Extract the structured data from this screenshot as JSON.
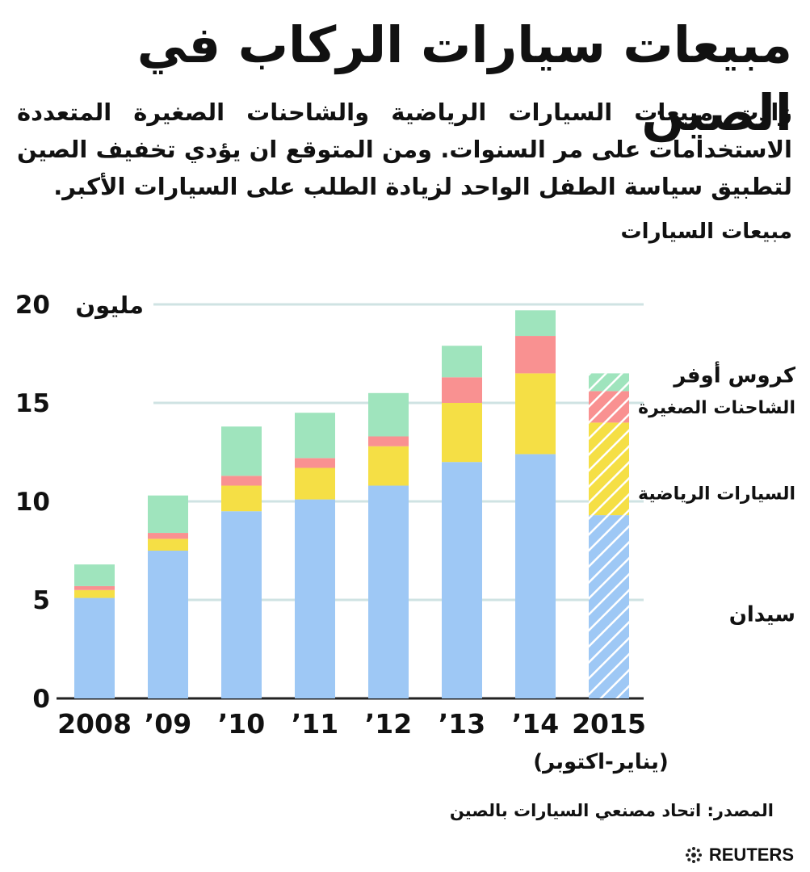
{
  "header": {
    "title": "مبيعات سيارات الركاب في الصين",
    "subtitle": "زادت مبيعات السيارات الرياضية والشاحنات الصغيرة المتعددة الاستخدامات على مر السنوات. ومن المتوقع ان يؤدي تخفيف الصين لتطبيق سياسة الطفل الواحد لزيادة الطلب على السيارات الأكبر.",
    "unit_heading": "مبيعات السيارات"
  },
  "footer": {
    "source": "المصدر: اتحاد مصنعي السيارات بالصين",
    "brand": "REUTERS",
    "brand_icon": "reuters-logo-icon"
  },
  "chart_data": {
    "type": "bar",
    "stacked": true,
    "categories": [
      "2008",
      "’09",
      "’10",
      "’11",
      "’12",
      "’13",
      "’14",
      "2015"
    ],
    "category_sublabels": [
      "",
      "",
      "",
      "",
      "",
      "",
      "",
      "(يناير-اكتوبر)"
    ],
    "ylim": [
      0,
      20
    ],
    "yticks": [
      0,
      5,
      10,
      15,
      20
    ],
    "y_unit_label": "مليون",
    "grid": true,
    "legend_position": "right",
    "projected_category_index": 7,
    "series": [
      {
        "name": "سيدان",
        "color": "#9ec8f5",
        "values": [
          5.1,
          7.5,
          9.5,
          10.1,
          10.8,
          12.0,
          12.4,
          9.3
        ]
      },
      {
        "name": "السيارات الرياضية",
        "color": "#f5df45",
        "values": [
          0.4,
          0.6,
          1.3,
          1.6,
          2.0,
          3.0,
          4.1,
          4.7
        ]
      },
      {
        "name": "الشاحنات الصغيرة",
        "color": "#f99191",
        "values": [
          0.2,
          0.3,
          0.5,
          0.5,
          0.5,
          1.3,
          1.9,
          1.6
        ]
      },
      {
        "name": "كروس أوفر",
        "color": "#9fe4bd",
        "values": [
          1.1,
          1.9,
          2.5,
          2.3,
          2.2,
          1.6,
          1.3,
          0.9
        ]
      }
    ],
    "gridline_color": "#cfe3e3"
  }
}
